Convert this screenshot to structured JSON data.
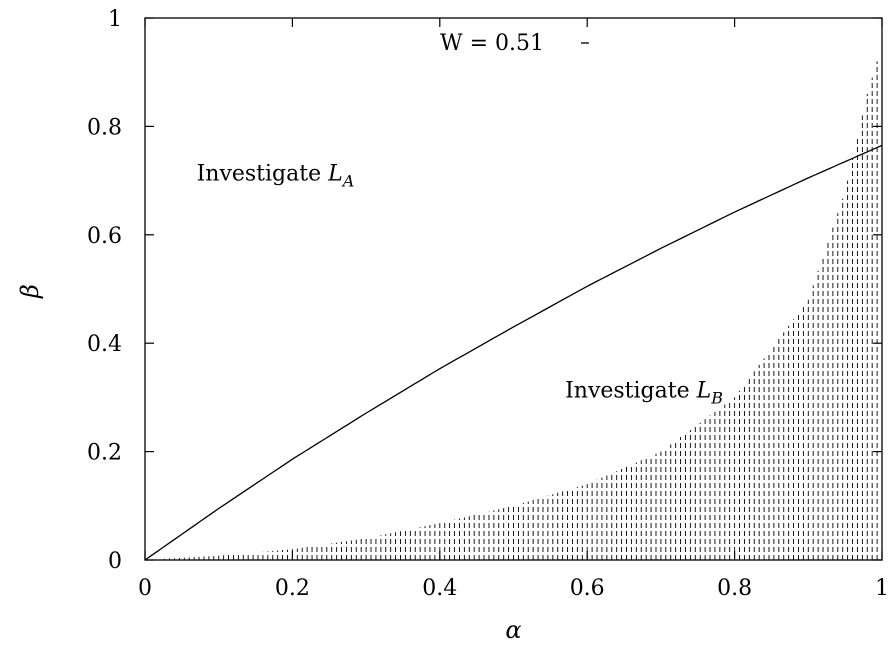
{
  "chart_data": {
    "type": "line",
    "xlabel": "α",
    "ylabel": "β",
    "xlim": [
      0,
      1
    ],
    "ylim": [
      0,
      1
    ],
    "x_ticks": [
      "0",
      "0.2",
      "0.4",
      "0.6",
      "0.8",
      "1"
    ],
    "y_ticks": [
      "0",
      "0.2",
      "0.4",
      "0.6",
      "0.8",
      "1"
    ],
    "grid": false,
    "legend": {
      "label": "W = 0.51",
      "placement": "top-center"
    },
    "series": [
      {
        "name": "W = 0.51",
        "style": "solid",
        "x": [
          0,
          0.1,
          0.2,
          0.3,
          0.4,
          0.5,
          0.6,
          0.7,
          0.8,
          0.9,
          1.0
        ],
        "y": [
          0,
          0.095,
          0.186,
          0.271,
          0.353,
          0.43,
          0.505,
          0.575,
          0.642,
          0.705,
          0.765
        ]
      },
      {
        "name": "",
        "style": "impulses-dashed",
        "x": [
          0,
          0.1,
          0.2,
          0.3,
          0.4,
          0.5,
          0.6,
          0.7,
          0.8,
          0.9,
          0.95,
          0.98,
          1.0
        ],
        "y": [
          0,
          0.008,
          0.02,
          0.04,
          0.068,
          0.1,
          0.14,
          0.2,
          0.3,
          0.48,
          0.68,
          0.86,
          0.95
        ]
      }
    ],
    "annotations": [
      {
        "text": "Investigate ",
        "math": "L",
        "sub": "A",
        "x": 0.07,
        "y": 0.7
      },
      {
        "text": "Investigate ",
        "math": "L",
        "sub": "B",
        "x": 0.57,
        "y": 0.3
      }
    ]
  }
}
